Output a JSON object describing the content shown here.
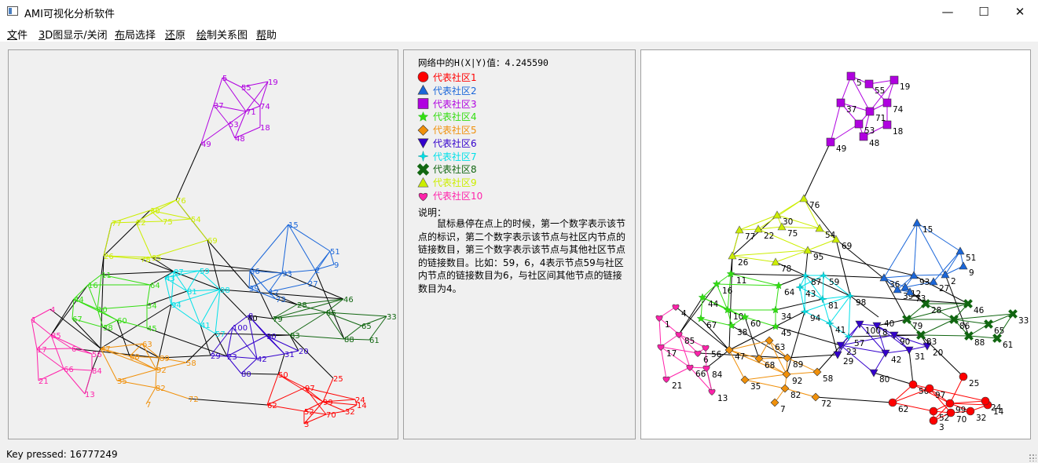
{
  "window": {
    "title": "AMI可视化分析软件",
    "minimize": "—",
    "maximize": "☐",
    "close": "✕"
  },
  "menu": [
    {
      "key": "文",
      "rest": "件"
    },
    {
      "key": "3",
      "rest": "D图显示/关闭"
    },
    {
      "key": "布",
      "rest": "局选择"
    },
    {
      "key": "还",
      "rest": "原"
    },
    {
      "key": "绘",
      "rest": "制关系图"
    },
    {
      "key": "帮",
      "rest": "助"
    }
  ],
  "info": {
    "hxy_label": "网络中的H(X|Y)值：4.245590",
    "note_title": "说明：",
    "note_body": "鼠标悬停在点上的时候，第一个数字表示该节点的标识，第二个数字表示该节点与社区内节点的链接数目，第三个数字表示该节点与其他社区节点的链接数目。比如：59，6，4表示节点59与社区内节点的链接数目为6，与社区间其他节点的链接数目为4。"
  },
  "legend": [
    {
      "label": "代表社区1",
      "color": "#ff0000",
      "icon": "circle-icon"
    },
    {
      "label": "代表社区2",
      "color": "#1a66d9",
      "icon": "triangle-up-icon"
    },
    {
      "label": "代表社区3",
      "color": "#b000e0",
      "icon": "square-icon"
    },
    {
      "label": "代表社区4",
      "color": "#33dd11",
      "icon": "star-icon"
    },
    {
      "label": "代表社区5",
      "color": "#f0900a",
      "icon": "diamond-icon"
    },
    {
      "label": "代表社区6",
      "color": "#3300cc",
      "icon": "triangle-down-icon"
    },
    {
      "label": "代表社区7",
      "color": "#00e0e8",
      "icon": "four-point-star-icon"
    },
    {
      "label": "代表社区8",
      "color": "#116611",
      "icon": "x-mark-icon"
    },
    {
      "label": "代表社区9",
      "color": "#ccee00",
      "icon": "triangle-up-outline-icon"
    },
    {
      "label": "代表社区10",
      "color": "#ff22aa",
      "icon": "heart-icon"
    }
  ],
  "status": {
    "text": "Key pressed: 16777249"
  },
  "graph": {
    "community_colors": [
      "#ff0000",
      "#1a66d9",
      "#b000e0",
      "#33dd11",
      "#f0900a",
      "#3300cc",
      "#00e0e8",
      "#116611",
      "#ccee00",
      "#ff22aa"
    ],
    "left_label_colors": [
      "#ff0000",
      "#1a66d9",
      "#b000e0",
      "#33dd11",
      "#f0900a",
      "#3300cc",
      "#00e0e8",
      "#116611",
      "#ccee00",
      "#ff22aa"
    ],
    "communities": [
      {
        "id": 1,
        "members": [
          "25",
          "62",
          "50",
          "3",
          "52",
          "70",
          "32",
          "14",
          "24",
          "99",
          "97"
        ]
      },
      {
        "id": 2,
        "members": [
          "15",
          "51",
          "9",
          "2",
          "93",
          "36",
          "39",
          "73",
          "27",
          "12"
        ]
      },
      {
        "id": 3,
        "members": [
          "5",
          "55",
          "19",
          "37",
          "71",
          "74",
          "53",
          "18",
          "48",
          "49"
        ]
      },
      {
        "id": 4,
        "members": [
          "11",
          "16",
          "44",
          "67",
          "10",
          "60",
          "38",
          "45",
          "34",
          "64"
        ]
      },
      {
        "id": 5,
        "members": [
          "47",
          "63",
          "68",
          "89",
          "58",
          "92",
          "35",
          "82",
          "7",
          "72"
        ]
      },
      {
        "id": 6,
        "members": [
          "100",
          "8",
          "90",
          "23",
          "42",
          "31",
          "20",
          "80",
          "29"
        ]
      },
      {
        "id": 7,
        "members": [
          "87",
          "59",
          "43",
          "81",
          "98",
          "94",
          "41",
          "57"
        ]
      },
      {
        "id": 8,
        "members": [
          "28",
          "46",
          "86",
          "65",
          "33",
          "79",
          "83",
          "88",
          "61"
        ]
      },
      {
        "id": 9,
        "members": [
          "76",
          "30",
          "77",
          "22",
          "75",
          "54",
          "26",
          "95",
          "78",
          "69"
        ]
      },
      {
        "id": 10,
        "members": [
          "1",
          "4",
          "85",
          "17",
          "6",
          "56",
          "66",
          "84",
          "21",
          "13"
        ]
      }
    ]
  }
}
